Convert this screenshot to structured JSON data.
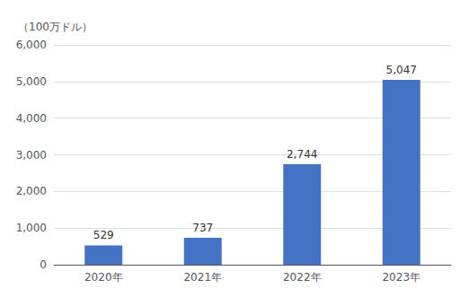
{
  "chart_data": {
    "type": "bar",
    "ylabel": "（100万ドル）",
    "categories": [
      "2020年",
      "2021年",
      "2022年",
      "2023年"
    ],
    "values": [
      529,
      737,
      2744,
      5047
    ],
    "value_labels": [
      "529",
      "737",
      "2,744",
      "5,047"
    ],
    "data_labels": true,
    "color": "#4472C4",
    "ylim": [
      0,
      6000
    ],
    "yticks": [
      0,
      {
        "value": 1000,
        "label": "1,000"
      },
      {
        "value": 2000,
        "label": "2,000"
      },
      {
        "value": 3000,
        "label": "3,000"
      },
      {
        "value": 4000,
        "label": "4,000"
      },
      {
        "value": 5000,
        "label": "5,000"
      },
      {
        "value": 6000,
        "label": "6,000"
      }
    ],
    "grid": true
  }
}
